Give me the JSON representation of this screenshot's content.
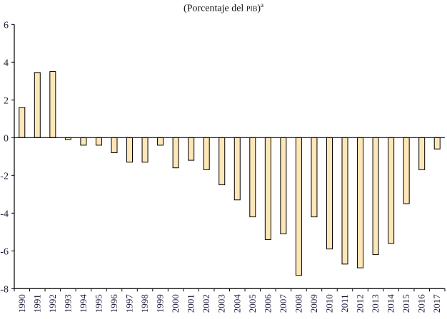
{
  "chart_data": {
    "type": "bar",
    "title_prefix": "(Porcentaje del ",
    "title_smallcaps": "pib",
    "title_suffix": ")",
    "title_note": "a",
    "xlabel": "",
    "ylabel": "",
    "ylim": [
      -8,
      6
    ],
    "yticks": [
      -8,
      -6,
      -4,
      -2,
      0,
      2,
      4,
      6
    ],
    "categories": [
      "1990",
      "1991",
      "1992",
      "1993",
      "1994",
      "1995",
      "1996",
      "1997",
      "1998",
      "1999",
      "2000",
      "2001",
      "2002",
      "2003",
      "2004",
      "2005",
      "2006",
      "2007",
      "2008",
      "2009",
      "2010",
      "2011",
      "2012",
      "2013",
      "2014",
      "2015",
      "2016",
      "2017"
    ],
    "values": [
      1.6,
      3.45,
      3.5,
      -0.1,
      -0.4,
      -0.4,
      -0.8,
      -1.3,
      -1.3,
      -0.4,
      -1.6,
      -1.2,
      -1.7,
      -2.5,
      -3.3,
      -4.2,
      -5.4,
      -5.1,
      -7.3,
      -4.2,
      -5.9,
      -6.7,
      -6.9,
      -6.2,
      -5.6,
      -3.5,
      -1.7,
      -0.6
    ],
    "grid": false,
    "bar_color": "#FDE7B8",
    "bar_edge_color": "#000000"
  }
}
